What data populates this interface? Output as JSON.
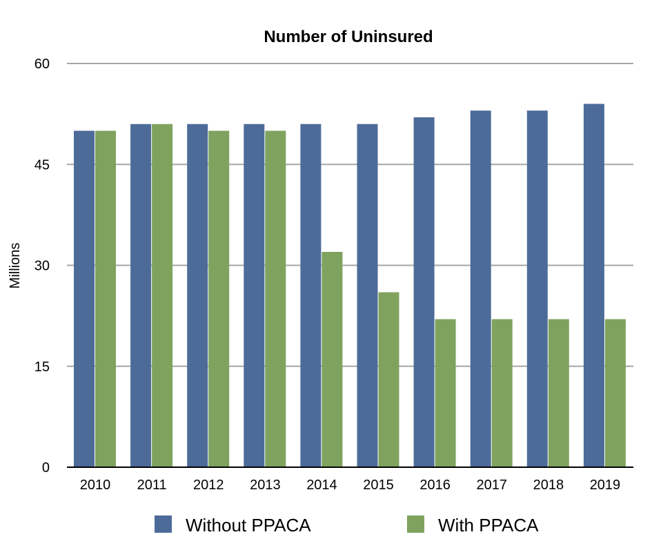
{
  "chart_data": {
    "type": "bar",
    "title": "Number of Uninsured",
    "xlabel": "",
    "ylabel": "Millions",
    "ylim": [
      0,
      60
    ],
    "yticks": [
      "0",
      "15",
      "30",
      "45",
      "60"
    ],
    "grid": true,
    "legend_position": "bottom",
    "categories": [
      "2010",
      "2011",
      "2012",
      "2013",
      "2014",
      "2015",
      "2016",
      "2017",
      "2018",
      "2019"
    ],
    "series": [
      {
        "name": "Without PPACA",
        "color": "#4d6b99",
        "values": [
          50,
          51,
          51,
          51,
          51,
          51,
          52,
          53,
          53,
          54
        ]
      },
      {
        "name": "With PPACA",
        "color": "#7fa35f",
        "values": [
          50,
          51,
          50,
          50,
          32,
          26,
          22,
          22,
          22,
          22
        ]
      }
    ]
  }
}
